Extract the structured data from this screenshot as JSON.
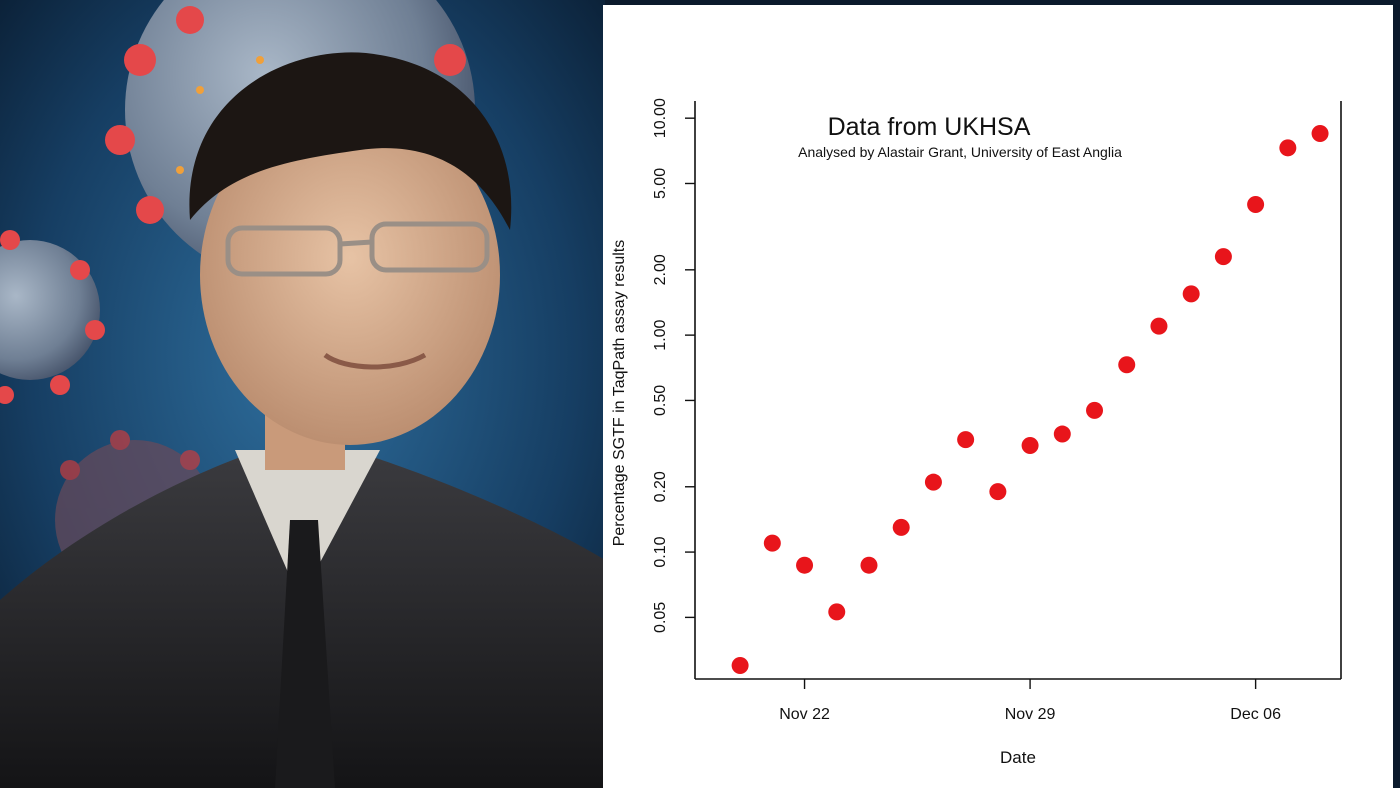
{
  "chart_data": {
    "type": "scatter",
    "title": "Data from UKHSA",
    "subtitle": "Analysed by Alastair Grant, University of East Anglia",
    "xlabel": "Date",
    "ylabel": "Percentage SGTF in TaqPath assay results",
    "x_tick_labels": [
      "Nov 22",
      "Nov 29",
      "Dec 06"
    ],
    "y_tick_labels": [
      "0.05",
      "0.10",
      "0.20",
      "0.50",
      "1.00",
      "2.00",
      "5.00",
      "10.00"
    ],
    "y_scale": "log",
    "grid": false,
    "marker_color": "#e8151b",
    "points": [
      {
        "date": "2021-11-20",
        "value": 0.03
      },
      {
        "date": "2021-11-21",
        "value": 0.11
      },
      {
        "date": "2021-11-22",
        "value": 0.087
      },
      {
        "date": "2021-11-23",
        "value": 0.053
      },
      {
        "date": "2021-11-24",
        "value": 0.087
      },
      {
        "date": "2021-11-25",
        "value": 0.13
      },
      {
        "date": "2021-11-26",
        "value": 0.21
      },
      {
        "date": "2021-11-27",
        "value": 0.33
      },
      {
        "date": "2021-11-28",
        "value": 0.19
      },
      {
        "date": "2021-11-29",
        "value": 0.31
      },
      {
        "date": "2021-11-30",
        "value": 0.35
      },
      {
        "date": "2021-12-01",
        "value": 0.45
      },
      {
        "date": "2021-12-02",
        "value": 0.73
      },
      {
        "date": "2021-12-03",
        "value": 1.1
      },
      {
        "date": "2021-12-04",
        "value": 1.55
      },
      {
        "date": "2021-12-05",
        "value": 2.3
      },
      {
        "date": "2021-12-06",
        "value": 4.0
      },
      {
        "date": "2021-12-07",
        "value": 7.3
      },
      {
        "date": "2021-12-08",
        "value": 8.5
      }
    ]
  }
}
